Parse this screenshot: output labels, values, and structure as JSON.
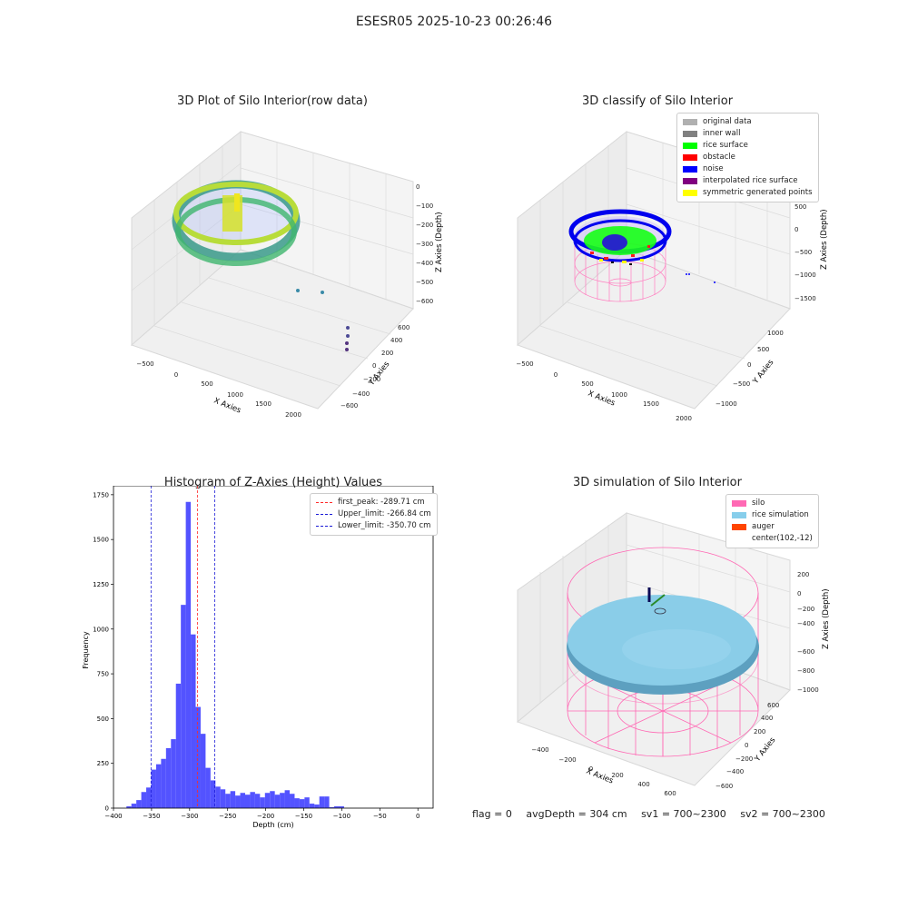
{
  "suptitle": "ESESR05 2025-10-23 00:26:46",
  "colors": {
    "hist_bar": "#4a4aff",
    "peak_line": "#ff2a2a",
    "limit_line": "#1a1ad6",
    "viridis_high": "#c8e020",
    "viridis_mid": "#2a9b8a",
    "viridis_low": "#46337e"
  },
  "panel_raw": {
    "title": "3D Plot of Silo Interior(row data)",
    "xlabel": "X Axies",
    "ylabel": "Y Axies",
    "zlabel": "Z Axies (Depth)",
    "xticks": [
      "−500",
      "0",
      "500",
      "1000",
      "1500",
      "2000"
    ],
    "yticks": [
      "−600",
      "−400",
      "−200",
      "0",
      "200",
      "400",
      "600"
    ],
    "zticks": [
      "0",
      "−100",
      "−200",
      "−300",
      "−400",
      "−500",
      "−600"
    ]
  },
  "panel_classify": {
    "title": "3D classify of Silo Interior",
    "xlabel": "X Axies",
    "ylabel": "Y Axies",
    "zlabel": "Z Axies (Depth)",
    "xticks": [
      "−500",
      "0",
      "500",
      "1000",
      "1500",
      "2000"
    ],
    "yticks": [
      "−1000",
      "−500",
      "0",
      "500",
      "1000"
    ],
    "zticks": [
      "500",
      "0",
      "−500",
      "−1000",
      "−1500"
    ],
    "legend": [
      {
        "label": "original data",
        "color": "#b0b0b0"
      },
      {
        "label": "inner wall",
        "color": "#808080"
      },
      {
        "label": "rice surface",
        "color": "#00ff00"
      },
      {
        "label": "obstacle",
        "color": "#ff0000"
      },
      {
        "label": "noise",
        "color": "#0000ff"
      },
      {
        "label": "interpolated rice surface",
        "color": "#800080"
      },
      {
        "label": "symmetric generated points",
        "color": "#ffff00"
      }
    ]
  },
  "panel_sim": {
    "title": "3D simulation of Silo Interior",
    "xlabel": "X Axies",
    "ylabel": "Y Axies",
    "zlabel": "Z Axies (Depth)",
    "xticks": [
      "−400",
      "−200",
      "0",
      "200",
      "400",
      "600"
    ],
    "yticks": [
      "−600",
      "−400",
      "−200",
      "0",
      "200",
      "400",
      "600"
    ],
    "zticks": [
      "200",
      "0",
      "−200",
      "−400",
      "−600",
      "−800",
      "−1000"
    ],
    "legend": [
      {
        "label": "silo",
        "color": "#ff69b4"
      },
      {
        "label": "rice simulation",
        "color": "#87ceeb"
      },
      {
        "label": "auger",
        "color": "#ff4500"
      },
      {
        "label": "center(102,-12)",
        "color": ""
      }
    ]
  },
  "chart_data": {
    "type": "bar",
    "title": "Histogram of Z-Axies (Height) Values",
    "xlabel": "Depth (cm)",
    "ylabel": "Frequency",
    "xlim": [
      -400,
      20
    ],
    "ylim": [
      0,
      1800
    ],
    "xticks": [
      -400,
      -350,
      -300,
      -250,
      -200,
      -150,
      -100,
      -50,
      0
    ],
    "yticks": [
      0,
      250,
      500,
      750,
      1000,
      1250,
      1500,
      1750
    ],
    "bin_start": -383,
    "bin_width": 6.5,
    "values": [
      10,
      25,
      45,
      90,
      115,
      215,
      245,
      275,
      335,
      385,
      695,
      1135,
      1710,
      970,
      565,
      415,
      225,
      155,
      120,
      105,
      80,
      95,
      70,
      85,
      75,
      90,
      80,
      60,
      85,
      95,
      75,
      85,
      100,
      80,
      55,
      50,
      60,
      25,
      20,
      65,
      65,
      5,
      10,
      10
    ],
    "vlines": [
      {
        "label": "first_peak: -289.71 cm",
        "x": -289.71,
        "color": "#ff2a2a"
      },
      {
        "label": "Upper_limit: -266.84 cm",
        "x": -266.84,
        "color": "#1a1ad6"
      },
      {
        "label": "Lower_limit: -350.70 cm",
        "x": -350.7,
        "color": "#1a1ad6"
      }
    ]
  },
  "footer": {
    "flag": "flag = 0",
    "avg": "avgDepth = 304 cm",
    "sv1": "sv1 = 700~2300",
    "sv2": "sv2 = 700~2300"
  }
}
